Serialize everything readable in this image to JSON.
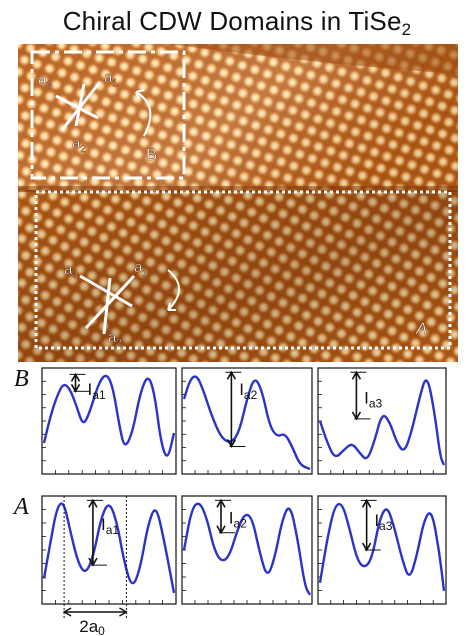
{
  "title": {
    "main": "Chiral CDW Domains in TiSe",
    "subscript": "2"
  },
  "stm_image": {
    "domain_b": {
      "label": "B",
      "axes": [
        "a3",
        "a1",
        "a2"
      ]
    },
    "domain_a": {
      "label": "A",
      "axes": [
        "a3",
        "a1",
        "a2"
      ]
    }
  },
  "profiles": {
    "row_b_label": "B",
    "row_a_label": "A",
    "panels": [
      {
        "row": "B",
        "intensity_label": "I",
        "subscript": "a1"
      },
      {
        "row": "B",
        "intensity_label": "I",
        "subscript": "a2"
      },
      {
        "row": "B",
        "intensity_label": "I",
        "subscript": "a3"
      },
      {
        "row": "A",
        "intensity_label": "I",
        "subscript": "a1"
      },
      {
        "row": "A",
        "intensity_label": "I",
        "subscript": "a2"
      },
      {
        "row": "A",
        "intensity_label": "I",
        "subscript": "a3"
      }
    ],
    "spacing_label": "2a",
    "spacing_subscript": "0"
  },
  "colors": {
    "curve": "#2a34c8",
    "stm_dark": "#6b2a05",
    "stm_mid": "#c86a1e",
    "stm_light": "#fff2c8"
  }
}
